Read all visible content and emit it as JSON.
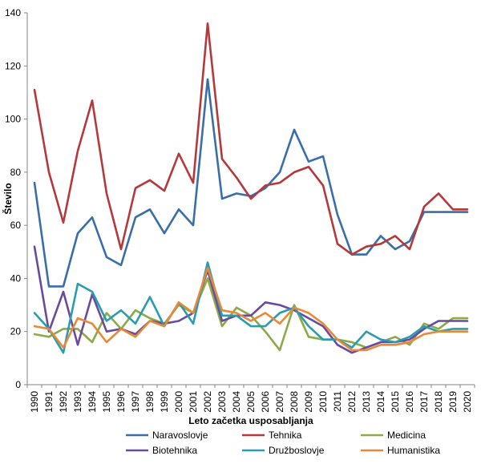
{
  "chart_data": {
    "type": "line",
    "xlabel": "Leto začetka usposabljanja",
    "ylabel": "Število",
    "ylim": [
      0,
      140
    ],
    "yticks": [
      0,
      20,
      40,
      60,
      80,
      100,
      120,
      140
    ],
    "grid": false,
    "legend_position": "bottom",
    "x": [
      "1990",
      "1991",
      "1992",
      "1993",
      "1994",
      "1995",
      "1996",
      "1997",
      "1998",
      "1999",
      "2000",
      "2001",
      "2002",
      "2003",
      "2004",
      "2005",
      "2006",
      "2007",
      "2008",
      "2009",
      "2010",
      "2011",
      "2012",
      "2013",
      "2014",
      "2015",
      "2016",
      "2017",
      "2018",
      "2019",
      "2020"
    ],
    "series": [
      {
        "name": "Naravoslovje",
        "color": "#3a6ea8",
        "values": [
          76,
          37,
          37,
          57,
          63,
          48,
          45,
          63,
          66,
          57,
          66,
          60,
          115,
          70,
          72,
          71,
          74,
          80,
          96,
          84,
          86,
          64,
          49,
          49,
          56,
          51,
          54,
          65,
          65,
          65,
          65
        ]
      },
      {
        "name": "Tehnika",
        "color": "#b5383a",
        "values": [
          111,
          80,
          61,
          88,
          107,
          72,
          51,
          74,
          77,
          73,
          87,
          76,
          136,
          85,
          78,
          70,
          75,
          76,
          80,
          82,
          75,
          53,
          49,
          52,
          53,
          56,
          51,
          67,
          72,
          66,
          66
        ]
      },
      {
        "name": "Medicina",
        "color": "#8caa46",
        "values": [
          19,
          18,
          21,
          21,
          16,
          27,
          21,
          28,
          25,
          23,
          30,
          27,
          40,
          22,
          29,
          26,
          20,
          13,
          30,
          18,
          17,
          17,
          16,
          14,
          16,
          18,
          15,
          23,
          21,
          25,
          25
        ]
      },
      {
        "name": "Biotehnika",
        "color": "#6a4a9c",
        "values": [
          52,
          20,
          35,
          15,
          34,
          20,
          21,
          19,
          24,
          23,
          24,
          27,
          43,
          24,
          26,
          26,
          31,
          30,
          28,
          25,
          22,
          15,
          12,
          14,
          16,
          16,
          17,
          21,
          24,
          24,
          24
        ]
      },
      {
        "name": "Družboslovje",
        "color": "#2a9cb0",
        "values": [
          27,
          21,
          12,
          38,
          35,
          24,
          28,
          23,
          33,
          22,
          31,
          23,
          46,
          26,
          26,
          22,
          22,
          27,
          29,
          22,
          17,
          17,
          14,
          20,
          17,
          16,
          18,
          22,
          20,
          21,
          21
        ]
      },
      {
        "name": "Humanistika",
        "color": "#e8893a",
        "values": [
          22,
          21,
          14,
          25,
          23,
          16,
          21,
          18,
          24,
          22,
          31,
          27,
          44,
          28,
          27,
          24,
          27,
          23,
          29,
          27,
          23,
          17,
          13,
          13,
          15,
          15,
          16,
          19,
          20,
          20,
          20
        ]
      }
    ]
  }
}
